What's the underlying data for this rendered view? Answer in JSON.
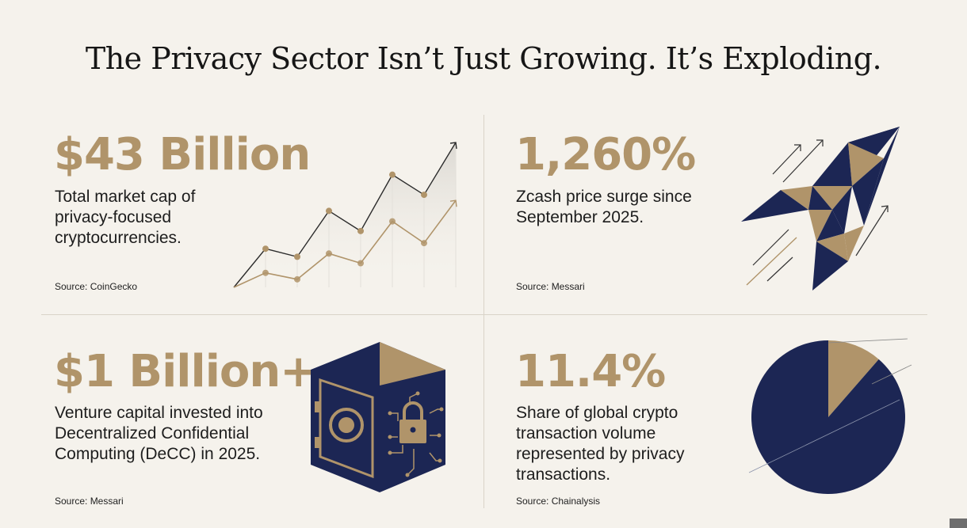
{
  "title": "The Privacy Sector Isn’t Just Growing. It’s Exploding.",
  "colors": {
    "background": "#f5f2ec",
    "gold": "#b0946a",
    "navy": "#1c2654",
    "text": "#1d1d1d"
  },
  "panels": [
    {
      "stat": "$43 Billion",
      "description": "Total market cap of privacy-focused cryptocurrencies.",
      "source": "Source: CoinGecko",
      "icon": "rising-line-chart-icon"
    },
    {
      "stat": "1,260%",
      "description": "Zcash price surge since September 2025.",
      "source": "Source: Messari",
      "icon": "geometric-rocket-icon"
    },
    {
      "stat": "$1 Billion+",
      "description": "Venture capital invested into Decentralized Confidential Computing (DeCC) in 2025.",
      "source": "Source: Messari",
      "icon": "secure-vault-icon"
    },
    {
      "stat": "11.4%",
      "description": "Share of global crypto transaction volume represented by privacy transactions.",
      "source": "Source: Chainalysis",
      "icon": "pie-chart-icon"
    }
  ],
  "chart_data": [
    {
      "type": "line",
      "title": "",
      "xlabel": "",
      "ylabel": "",
      "grid": false,
      "series": [
        {
          "values": [
            0,
            48,
            38,
            95,
            70,
            140,
            115,
            180
          ]
        },
        {
          "values": [
            0,
            18,
            10,
            42,
            30,
            82,
            55,
            108
          ]
        }
      ]
    },
    {
      "type": "pie",
      "title": "",
      "slices": [
        {
          "value": 11.4,
          "color": "#b0946a"
        },
        {
          "value": 88.6,
          "color": "#1c2654"
        }
      ]
    }
  ]
}
